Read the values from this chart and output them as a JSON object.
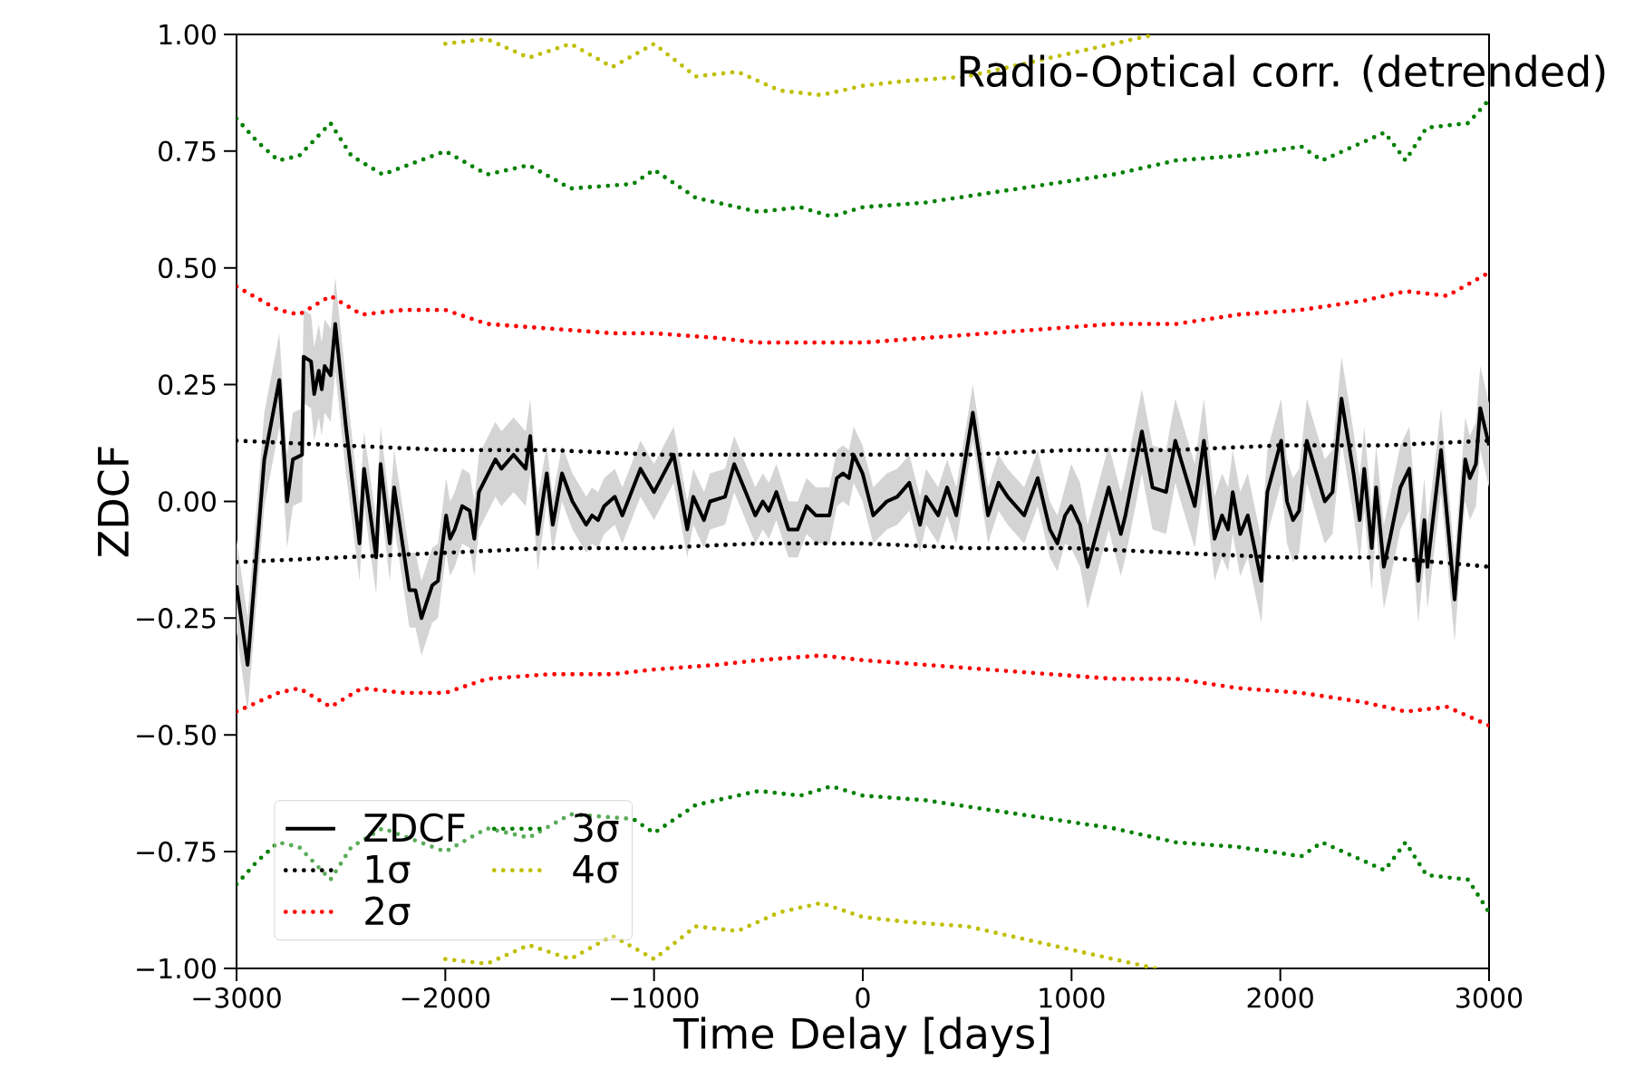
{
  "chart_data": {
    "type": "line",
    "title": "Radio-Optical corr. (detrended)",
    "xlabel": "Time Delay [days]",
    "ylabel": "ZDCF",
    "xlim": [
      -3000,
      3000
    ],
    "ylim": [
      -1,
      1
    ],
    "xticks": [
      {
        "value": -3000,
        "label": "−3000"
      },
      {
        "value": -2000,
        "label": "−2000"
      },
      {
        "value": -1000,
        "label": "−1000"
      },
      0,
      1000,
      2000,
      3000
    ],
    "yticks": [
      {
        "value": -1,
        "label": "−1.00"
      },
      {
        "value": -0.75,
        "label": "−0.75"
      },
      {
        "value": -0.5,
        "label": "−0.50"
      },
      {
        "value": -0.25,
        "label": "−0.25"
      },
      {
        "value": 0,
        "label": "0.00"
      },
      {
        "value": 0.25,
        "label": "0.25"
      },
      {
        "value": 0.5,
        "label": "0.50"
      },
      {
        "value": 0.75,
        "label": "0.75"
      },
      {
        "value": 1,
        "label": "1.00"
      }
    ],
    "legend": "bottom left",
    "series": [
      {
        "name": "ZDCF",
        "color": "#000000",
        "line_style": "solid",
        "x": [
          -3000,
          -2947,
          -2867,
          -2795,
          -2758,
          -2730,
          -2686,
          -2679,
          -2643,
          -2628,
          -2606,
          -2592,
          -2578,
          -2549,
          -2527,
          -2476,
          -2411,
          -2389,
          -2331,
          -2310,
          -2266,
          -2245,
          -2172,
          -2143,
          -2114,
          -2063,
          -2035,
          -1996,
          -1977,
          -1955,
          -1919,
          -1883,
          -1861,
          -1839,
          -1760,
          -1731,
          -1673,
          -1615,
          -1593,
          -1557,
          -1514,
          -1485,
          -1441,
          -1391,
          -1325,
          -1297,
          -1268,
          -1239,
          -1188,
          -1152,
          -1065,
          -1000,
          -906,
          -841,
          -812,
          -761,
          -732,
          -660,
          -616,
          -515,
          -479,
          -450,
          -414,
          -356,
          -312,
          -269,
          -225,
          -160,
          -124,
          -95,
          -66,
          -44,
          -1,
          50,
          115,
          165,
          223,
          274,
          303,
          361,
          404,
          448,
          527,
          600,
          650,
          694,
          773,
          838,
          896,
          932,
          969,
          998,
          1041,
          1077,
          1178,
          1236,
          1258,
          1337,
          1388,
          1453,
          1497,
          1590,
          1634,
          1685,
          1721,
          1750,
          1772,
          1808,
          1844,
          1909,
          1938,
          2004,
          2032,
          2061,
          2090,
          2127,
          2213,
          2250,
          2293,
          2351,
          2380,
          2402,
          2438,
          2459,
          2496,
          2525,
          2575,
          2618,
          2661,
          2690,
          2705,
          2770,
          2835,
          2886,
          2908,
          2937,
          2958,
          3000
        ],
        "values": [
          -0.18,
          -0.35,
          0.09,
          0.26,
          0.0,
          0.09,
          0.1,
          0.31,
          0.3,
          0.23,
          0.28,
          0.24,
          0.29,
          0.27,
          0.38,
          0.16,
          -0.09,
          0.07,
          -0.12,
          0.08,
          -0.09,
          0.03,
          -0.19,
          -0.19,
          -0.25,
          -0.18,
          -0.17,
          -0.03,
          -0.08,
          -0.06,
          -0.01,
          -0.02,
          -0.08,
          0.02,
          0.09,
          0.07,
          0.1,
          0.07,
          0.14,
          -0.07,
          0.06,
          -0.05,
          0.06,
          0.0,
          -0.05,
          -0.03,
          -0.04,
          -0.01,
          0.01,
          -0.03,
          0.07,
          0.02,
          0.1,
          -0.06,
          0.01,
          -0.04,
          0.0,
          0.01,
          0.08,
          -0.03,
          0.0,
          -0.02,
          0.02,
          -0.06,
          -0.06,
          -0.01,
          -0.03,
          -0.03,
          0.05,
          0.06,
          0.05,
          0.1,
          0.06,
          -0.03,
          0.0,
          0.01,
          0.04,
          -0.05,
          0.01,
          -0.03,
          0.03,
          -0.03,
          0.19,
          -0.03,
          0.04,
          0.01,
          -0.03,
          0.05,
          -0.06,
          -0.09,
          -0.03,
          -0.01,
          -0.05,
          -0.14,
          0.03,
          -0.07,
          -0.03,
          0.15,
          0.03,
          0.02,
          0.13,
          -0.01,
          0.13,
          -0.08,
          -0.03,
          -0.06,
          0.02,
          -0.07,
          -0.03,
          -0.17,
          0.02,
          0.13,
          0.0,
          -0.04,
          -0.02,
          0.13,
          0.0,
          0.02,
          0.22,
          0.06,
          -0.04,
          0.07,
          -0.1,
          0.03,
          -0.14,
          -0.08,
          0.03,
          0.07,
          -0.17,
          -0.04,
          -0.14,
          0.11,
          -0.21,
          0.09,
          0.05,
          0.08,
          0.2,
          0.12
        ],
        "lower": [
          -0.28,
          -0.45,
          -0.01,
          0.16,
          -0.1,
          -0.01,
          0.0,
          0.21,
          0.2,
          0.13,
          0.18,
          0.14,
          0.19,
          0.17,
          0.28,
          0.06,
          -0.17,
          -0.01,
          -0.2,
          0.0,
          -0.17,
          -0.05,
          -0.27,
          -0.27,
          -0.33,
          -0.26,
          -0.25,
          -0.11,
          -0.16,
          -0.14,
          -0.09,
          -0.1,
          -0.16,
          -0.06,
          0.01,
          -0.01,
          0.02,
          -0.01,
          0.06,
          -0.15,
          0.0,
          -0.11,
          0.0,
          -0.06,
          -0.11,
          -0.09,
          -0.1,
          -0.07,
          -0.05,
          -0.09,
          0.01,
          -0.04,
          0.04,
          -0.12,
          -0.05,
          -0.1,
          -0.06,
          -0.05,
          0.02,
          -0.09,
          -0.06,
          -0.08,
          -0.04,
          -0.12,
          -0.12,
          -0.07,
          -0.09,
          -0.09,
          -0.01,
          0.0,
          -0.01,
          0.04,
          0.0,
          -0.09,
          -0.06,
          -0.05,
          -0.02,
          -0.11,
          -0.05,
          -0.09,
          -0.03,
          -0.09,
          0.13,
          -0.09,
          -0.02,
          -0.05,
          -0.09,
          -0.01,
          -0.12,
          -0.15,
          -0.09,
          -0.1,
          -0.14,
          -0.23,
          -0.06,
          -0.16,
          -0.12,
          0.06,
          -0.06,
          -0.07,
          0.04,
          -0.1,
          0.04,
          -0.17,
          -0.12,
          -0.15,
          -0.07,
          -0.16,
          -0.12,
          -0.26,
          -0.07,
          0.04,
          -0.09,
          -0.13,
          -0.11,
          0.04,
          -0.09,
          -0.07,
          0.13,
          -0.03,
          -0.13,
          -0.02,
          -0.19,
          -0.06,
          -0.23,
          -0.17,
          -0.06,
          -0.02,
          -0.26,
          -0.13,
          -0.23,
          0.02,
          -0.3,
          0.0,
          -0.04,
          -0.01,
          0.11,
          0.03
        ],
        "upper": [
          -0.08,
          -0.25,
          0.19,
          0.36,
          0.1,
          0.19,
          0.2,
          0.41,
          0.4,
          0.33,
          0.38,
          0.34,
          0.39,
          0.37,
          0.48,
          0.26,
          -0.01,
          0.15,
          -0.04,
          0.16,
          -0.01,
          0.11,
          -0.11,
          -0.11,
          -0.17,
          -0.1,
          -0.09,
          0.05,
          0.0,
          0.02,
          0.07,
          0.06,
          0.0,
          0.1,
          0.17,
          0.15,
          0.18,
          0.15,
          0.22,
          0.01,
          0.12,
          0.01,
          0.12,
          0.06,
          0.01,
          0.03,
          0.02,
          0.05,
          0.07,
          0.03,
          0.13,
          0.08,
          0.16,
          0.0,
          0.07,
          0.02,
          0.06,
          0.07,
          0.14,
          0.03,
          0.06,
          0.04,
          0.08,
          0.0,
          0.0,
          0.05,
          0.03,
          0.03,
          0.11,
          0.12,
          0.11,
          0.16,
          0.12,
          0.03,
          0.06,
          0.07,
          0.1,
          0.01,
          0.07,
          0.03,
          0.09,
          0.03,
          0.25,
          0.03,
          0.1,
          0.07,
          0.03,
          0.11,
          0.0,
          -0.03,
          0.03,
          0.08,
          0.04,
          -0.05,
          0.12,
          0.02,
          0.06,
          0.24,
          0.12,
          0.11,
          0.22,
          0.08,
          0.22,
          0.01,
          0.06,
          0.03,
          0.11,
          0.02,
          0.06,
          -0.08,
          0.11,
          0.22,
          0.09,
          0.05,
          0.07,
          0.22,
          0.09,
          0.11,
          0.31,
          0.15,
          0.05,
          0.16,
          -0.01,
          0.12,
          -0.05,
          0.01,
          0.12,
          0.16,
          -0.08,
          0.05,
          -0.05,
          0.2,
          -0.12,
          0.18,
          0.14,
          0.17,
          0.29,
          0.21
        ]
      },
      {
        "name": "1σ",
        "color": "#000000",
        "line_style": "dotted",
        "x": [
          -3000,
          -2500,
          -2000,
          -1500,
          -1000,
          -500,
          0,
          500,
          1000,
          1500,
          2000,
          2500,
          3000
        ],
        "values": [
          0.13,
          0.12,
          0.11,
          0.11,
          0.1,
          0.1,
          0.1,
          0.1,
          0.11,
          0.11,
          0.12,
          0.12,
          0.13
        ]
      },
      {
        "color": "#000000",
        "line_style": "dotted",
        "x": [
          -3000,
          -2500,
          -2000,
          -1500,
          -1000,
          -500,
          0,
          500,
          1000,
          1500,
          2000,
          2500,
          3000
        ],
        "values": [
          -0.13,
          -0.12,
          -0.11,
          -0.1,
          -0.1,
          -0.09,
          -0.09,
          -0.1,
          -0.1,
          -0.11,
          -0.12,
          -0.12,
          -0.14
        ]
      },
      {
        "name": "2σ",
        "color": "#ff0000",
        "line_style": "dotted",
        "x": [
          -3000,
          -2800,
          -2700,
          -2550,
          -2400,
          -2200,
          -2000,
          -1800,
          -1500,
          -1200,
          -1000,
          -700,
          -500,
          -200,
          0,
          300,
          600,
          900,
          1200,
          1500,
          1800,
          2100,
          2400,
          2600,
          2800,
          3000
        ],
        "values": [
          0.46,
          0.41,
          0.4,
          0.44,
          0.4,
          0.41,
          0.41,
          0.38,
          0.37,
          0.36,
          0.36,
          0.35,
          0.34,
          0.34,
          0.34,
          0.35,
          0.36,
          0.37,
          0.38,
          0.38,
          0.4,
          0.41,
          0.43,
          0.45,
          0.44,
          0.49
        ]
      },
      {
        "color": "#ff0000",
        "line_style": "dotted",
        "x": [
          -3000,
          -2800,
          -2700,
          -2550,
          -2400,
          -2200,
          -2000,
          -1800,
          -1500,
          -1200,
          -1000,
          -700,
          -500,
          -200,
          0,
          300,
          600,
          900,
          1200,
          1500,
          1800,
          2100,
          2400,
          2600,
          2800,
          3000
        ],
        "values": [
          -0.45,
          -0.41,
          -0.4,
          -0.44,
          -0.4,
          -0.41,
          -0.41,
          -0.38,
          -0.37,
          -0.37,
          -0.36,
          -0.35,
          -0.34,
          -0.33,
          -0.34,
          -0.35,
          -0.36,
          -0.37,
          -0.38,
          -0.38,
          -0.4,
          -0.41,
          -0.43,
          -0.45,
          -0.44,
          -0.48
        ]
      },
      {
        "name": "3σ",
        "color": "#008000",
        "line_style": "dotted",
        "x": [
          -3000,
          -2900,
          -2800,
          -2700,
          -2550,
          -2450,
          -2300,
          -2000,
          -1800,
          -1600,
          -1400,
          -1100,
          -1000,
          -800,
          -500,
          -300,
          -150,
          0,
          300,
          600,
          900,
          1200,
          1500,
          1800,
          2100,
          2200,
          2400,
          2500,
          2600,
          2700,
          2900,
          3000
        ],
        "values": [
          0.82,
          0.77,
          0.73,
          0.74,
          0.81,
          0.74,
          0.7,
          0.75,
          0.7,
          0.72,
          0.67,
          0.68,
          0.71,
          0.65,
          0.62,
          0.63,
          0.61,
          0.63,
          0.64,
          0.66,
          0.68,
          0.7,
          0.73,
          0.74,
          0.76,
          0.73,
          0.77,
          0.79,
          0.73,
          0.8,
          0.81,
          0.86
        ]
      },
      {
        "color": "#008000",
        "line_style": "dotted",
        "x": [
          -3000,
          -2900,
          -2800,
          -2700,
          -2550,
          -2450,
          -2300,
          -2000,
          -1800,
          -1600,
          -1400,
          -1100,
          -1000,
          -800,
          -500,
          -300,
          -150,
          0,
          300,
          600,
          900,
          1200,
          1500,
          1800,
          2100,
          2200,
          2400,
          2500,
          2600,
          2700,
          2900,
          3000
        ],
        "values": [
          -0.82,
          -0.77,
          -0.73,
          -0.74,
          -0.81,
          -0.74,
          -0.7,
          -0.75,
          -0.7,
          -0.72,
          -0.67,
          -0.68,
          -0.71,
          -0.65,
          -0.62,
          -0.63,
          -0.61,
          -0.63,
          -0.64,
          -0.66,
          -0.68,
          -0.7,
          -0.73,
          -0.74,
          -0.76,
          -0.73,
          -0.77,
          -0.79,
          -0.73,
          -0.8,
          -0.81,
          -0.88
        ]
      },
      {
        "name": "4σ",
        "color": "#bfbf00",
        "line_style": "dotted",
        "x": [
          -2000,
          -1800,
          -1600,
          -1400,
          -1200,
          -1000,
          -800,
          -600,
          -400,
          -200,
          0,
          200,
          500,
          800,
          1100,
          1300,
          1400
        ],
        "values": [
          0.98,
          0.99,
          0.95,
          0.98,
          0.93,
          0.98,
          0.91,
          0.92,
          0.88,
          0.87,
          0.89,
          0.9,
          0.91,
          0.94,
          0.97,
          0.99,
          1.0
        ]
      },
      {
        "color": "#bfbf00",
        "line_style": "dotted",
        "x": [
          -2000,
          -1800,
          -1600,
          -1400,
          -1200,
          -1000,
          -800,
          -600,
          -400,
          -200,
          0,
          200,
          500,
          800,
          1100,
          1300,
          1400
        ],
        "values": [
          -0.98,
          -0.99,
          -0.95,
          -0.98,
          -0.93,
          -0.98,
          -0.91,
          -0.92,
          -0.88,
          -0.86,
          -0.89,
          -0.9,
          -0.91,
          -0.94,
          -0.97,
          -0.99,
          -1.0
        ]
      }
    ]
  }
}
